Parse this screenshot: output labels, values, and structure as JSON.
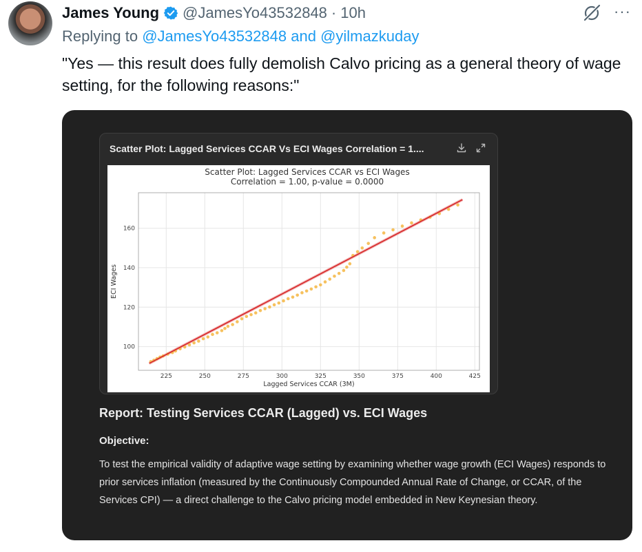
{
  "tweet": {
    "author_name": "James Young",
    "handle": "@JamesYo43532848",
    "separator": "·",
    "time": "10h",
    "replying_prefix": "Replying to",
    "replying_mention_1": "@JamesYo43532848",
    "replying_and": "and",
    "replying_mention_2": "@yilmazkuday",
    "text": "\"Yes — this result does fully demolish Calvo pricing as a general theory of wage setting, for the following reasons:\"",
    "more_label": "···"
  },
  "card": {
    "chart_header_title": "Scatter Plot: Lagged Services CCAR Vs ECI Wages Correlation = 1....",
    "report_title": "Report: Testing Services CCAR (Lagged) vs. ECI Wages",
    "objective_label": "Objective:",
    "objective_text": "To test the empirical validity of adaptive wage setting by examining whether wage growth (ECI Wages) responds to prior services inflation (measured by the Continuously Compounded Annual Rate of Change, or CCAR, of the Services CPI) — a direct challenge to the Calvo pricing model embedded in New Keynesian theory."
  },
  "icons": {
    "verified": "verified-badge-icon",
    "grok": "grok-icon",
    "more": "more-icon",
    "download": "download-icon",
    "expand": "expand-icon"
  },
  "colors": {
    "mention": "#1d9bf0",
    "card_bg": "#212121",
    "scatter": "#f5b642",
    "fit_line": "#d62728"
  },
  "chart_data": {
    "type": "scatter",
    "title": "Scatter Plot: Lagged Services CCAR vs ECI Wages",
    "subtitle": "Correlation = 1.00, p-value = 0.0000",
    "xlabel": "Lagged Services CCAR (3M)",
    "ylabel": "ECI Wages",
    "xlim": [
      207,
      428
    ],
    "ylim": [
      88,
      178
    ],
    "xticks": [
      225,
      250,
      275,
      300,
      325,
      350,
      375,
      400,
      425
    ],
    "yticks": [
      100,
      120,
      140,
      160
    ],
    "grid": true,
    "fit_line": {
      "x": [
        214,
        417
      ],
      "y": [
        91.5,
        174.5
      ]
    },
    "points": {
      "x": [
        215,
        217,
        219,
        221,
        223,
        226,
        229,
        231,
        234,
        237,
        240,
        243,
        246,
        249,
        252,
        255,
        258,
        261,
        263,
        265,
        268,
        271,
        274,
        277,
        280,
        283,
        286,
        289,
        292,
        295,
        298,
        301,
        304,
        307,
        310,
        313,
        316,
        319,
        322,
        325,
        328,
        331,
        334,
        337,
        340,
        342,
        344,
        346,
        349,
        352,
        356,
        360,
        366,
        372,
        378,
        384,
        390,
        396,
        402,
        408,
        414
      ],
      "y": [
        92.4,
        93.1,
        93.9,
        94.7,
        95.3,
        96.2,
        97.0,
        97.8,
        98.9,
        99.8,
        100.9,
        101.9,
        102.8,
        104.0,
        104.9,
        106.2,
        107.0,
        108.1,
        109.2,
        110.3,
        111.2,
        112.6,
        114.1,
        115.3,
        116.2,
        117.1,
        118.3,
        119.2,
        120.1,
        121.2,
        122.1,
        123.2,
        124.3,
        125.1,
        126.1,
        127.3,
        128.2,
        129.2,
        130.3,
        131.3,
        132.8,
        134.2,
        135.7,
        137.1,
        138.6,
        140.3,
        142.0,
        146.2,
        148.1,
        150.0,
        152.3,
        155.2,
        157.6,
        159.2,
        161.1,
        162.7,
        164.2,
        165.6,
        167.4,
        169.6,
        171.8
      ]
    }
  }
}
